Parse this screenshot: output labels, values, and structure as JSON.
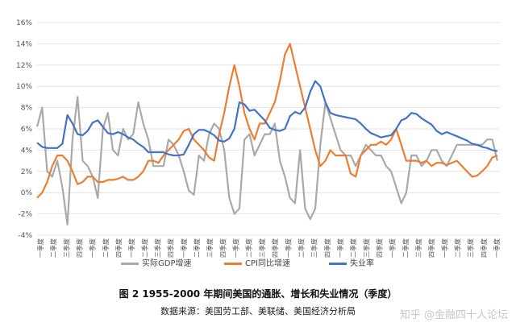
{
  "chart_data": {
    "type": "line",
    "ylim": [
      -4,
      16
    ],
    "ytick_labels": [
      "-4%",
      "-2%",
      "0%",
      "2%",
      "4%",
      "6%",
      "8%",
      "10%",
      "12%",
      "14%",
      "16%"
    ],
    "x_range": [
      1955,
      2000.75
    ],
    "x_tick_labels": [
      "1955一季度",
      "1956二季度",
      "1957三季度",
      "1958四季度",
      "1961一季度",
      "1962二季度",
      "1963四季度",
      "1965一季度",
      "1966二季度",
      "1967三季度",
      "1968四季度",
      "1970一季度",
      "1971二季度",
      "1972三季度",
      "1973四季度",
      "1975一季度",
      "1976二季度",
      "1977三季度",
      "1978四季度",
      "1980一季度",
      "1981二季度",
      "1982三季度",
      "1983四季度",
      "1985一季度",
      "1986二季度",
      "1987三季度",
      "1988四季度",
      "1990一季度",
      "1991二季度",
      "1992三季度",
      "1993四季度",
      "1995一季度",
      "1996二季度",
      "1997三季度",
      "1998四季度",
      "2000一季度"
    ],
    "series": [
      {
        "name": "实际GDP增速",
        "color": "#a9a9a9",
        "x": [
          1955,
          1955.5,
          1956,
          1956.5,
          1957,
          1957.5,
          1958,
          1958.5,
          1959,
          1959.5,
          1960,
          1960.5,
          1961,
          1961.5,
          1962,
          1962.5,
          1963,
          1963.5,
          1964,
          1964.5,
          1965,
          1965.5,
          1966,
          1966.5,
          1967,
          1967.5,
          1968,
          1968.5,
          1969,
          1969.5,
          1970,
          1970.5,
          1971,
          1971.5,
          1972,
          1972.5,
          1973,
          1973.5,
          1974,
          1974.5,
          1975,
          1975.5,
          1976,
          1976.5,
          1977,
          1977.5,
          1978,
          1978.5,
          1979,
          1979.5,
          1980,
          1980.5,
          1981,
          1981.5,
          1982,
          1982.5,
          1983,
          1983.5,
          1984,
          1984.5,
          1985,
          1985.5,
          1986,
          1986.5,
          1987,
          1987.5,
          1988,
          1988.5,
          1989,
          1989.5,
          1990,
          1990.5,
          1991,
          1991.5,
          1992,
          1992.5,
          1993,
          1993.5,
          1994,
          1994.5,
          1995,
          1995.5,
          1996,
          1996.5,
          1997,
          1997.5,
          1998,
          1998.5,
          1999,
          1999.5,
          2000,
          2000.5
        ],
        "values": [
          6.2,
          8.0,
          2.0,
          1.5,
          3.0,
          0.5,
          -3.0,
          5.0,
          9.0,
          3.0,
          2.5,
          1.5,
          -0.5,
          6.0,
          7.5,
          4.0,
          3.5,
          6.0,
          5.0,
          5.5,
          8.5,
          6.5,
          5.0,
          2.5,
          2.5,
          2.5,
          5.0,
          4.5,
          3.5,
          2.0,
          0.2,
          -0.2,
          3.5,
          3.0,
          5.5,
          6.5,
          6.0,
          4.0,
          -0.5,
          -2.0,
          -1.5,
          5.0,
          5.5,
          3.5,
          4.5,
          5.5,
          5.5,
          6.5,
          3.0,
          1.5,
          -0.5,
          -1.0,
          4.0,
          -1.5,
          -2.5,
          -1.5,
          4.5,
          8.5,
          7.0,
          5.5,
          4.0,
          3.5,
          3.5,
          2.5,
          3.5,
          4.5,
          4.0,
          3.5,
          3.5,
          2.5,
          2.0,
          0.5,
          -1.0,
          0.0,
          3.5,
          3.5,
          2.5,
          3.0,
          4.0,
          4.0,
          3.0,
          2.5,
          3.5,
          4.5,
          4.5,
          4.5,
          4.5,
          4.5,
          4.5,
          5.0,
          5.0,
          3.0
        ]
      },
      {
        "name": "CPI同比增速",
        "color": "#ed7d31",
        "x": [
          1955,
          1955.5,
          1956,
          1956.5,
          1957,
          1957.5,
          1958,
          1958.5,
          1959,
          1959.5,
          1960,
          1960.5,
          1961,
          1961.5,
          1962,
          1962.5,
          1963,
          1963.5,
          1964,
          1964.5,
          1965,
          1965.5,
          1966,
          1966.5,
          1967,
          1967.5,
          1968,
          1968.5,
          1969,
          1969.5,
          1970,
          1970.5,
          1971,
          1971.5,
          1972,
          1972.5,
          1973,
          1973.5,
          1974,
          1974.5,
          1975,
          1975.5,
          1976,
          1976.5,
          1977,
          1977.5,
          1978,
          1978.5,
          1979,
          1979.5,
          1980,
          1980.5,
          1981,
          1981.5,
          1982,
          1982.5,
          1983,
          1983.5,
          1984,
          1984.5,
          1985,
          1985.5,
          1986,
          1986.5,
          1987,
          1987.5,
          1988,
          1988.5,
          1989,
          1989.5,
          1990,
          1990.5,
          1991,
          1991.5,
          1992,
          1992.5,
          1993,
          1993.5,
          1994,
          1994.5,
          1995,
          1995.5,
          1996,
          1996.5,
          1997,
          1997.5,
          1998,
          1998.5,
          1999,
          1999.5,
          2000,
          2000.5
        ],
        "values": [
          -0.5,
          0.0,
          1.0,
          2.5,
          3.5,
          3.5,
          3.0,
          2.0,
          0.8,
          1.0,
          1.5,
          1.5,
          1.0,
          1.0,
          1.2,
          1.2,
          1.3,
          1.5,
          1.2,
          1.2,
          1.5,
          2.0,
          3.0,
          3.0,
          2.8,
          3.5,
          4.0,
          4.5,
          5.0,
          5.8,
          6.0,
          5.0,
          4.5,
          4.0,
          3.3,
          3.0,
          5.5,
          7.5,
          10.0,
          12.0,
          10.0,
          7.5,
          6.0,
          5.0,
          6.5,
          6.5,
          7.5,
          8.5,
          10.5,
          13.0,
          14.0,
          12.0,
          10.0,
          8.0,
          6.0,
          4.0,
          2.5,
          3.0,
          4.0,
          3.5,
          3.5,
          3.5,
          1.8,
          1.5,
          3.5,
          4.0,
          4.5,
          4.5,
          4.8,
          4.5,
          5.0,
          6.0,
          4.5,
          3.0,
          3.0,
          3.0,
          2.8,
          3.0,
          2.5,
          2.8,
          2.8,
          2.6,
          2.8,
          3.0,
          2.5,
          2.0,
          1.5,
          1.6,
          2.0,
          2.5,
          3.3,
          3.5
        ]
      },
      {
        "name": "失业率",
        "color": "#4472c4",
        "x": [
          1955,
          1955.5,
          1956,
          1956.5,
          1957,
          1957.5,
          1958,
          1958.5,
          1959,
          1959.5,
          1960,
          1960.5,
          1961,
          1961.5,
          1962,
          1962.5,
          1963,
          1963.5,
          1964,
          1964.5,
          1965,
          1965.5,
          1966,
          1966.5,
          1967,
          1967.5,
          1968,
          1968.5,
          1969,
          1969.5,
          1970,
          1970.5,
          1971,
          1971.5,
          1972,
          1972.5,
          1973,
          1973.5,
          1974,
          1974.5,
          1975,
          1975.5,
          1976,
          1976.5,
          1977,
          1977.5,
          1978,
          1978.5,
          1979,
          1979.5,
          1980,
          1980.5,
          1981,
          1981.5,
          1982,
          1982.5,
          1983,
          1983.5,
          1984,
          1984.5,
          1985,
          1985.5,
          1986,
          1986.5,
          1987,
          1987.5,
          1988,
          1988.5,
          1989,
          1989.5,
          1990,
          1990.5,
          1991,
          1991.5,
          1992,
          1992.5,
          1993,
          1993.5,
          1994,
          1994.5,
          1995,
          1995.5,
          1996,
          1996.5,
          1997,
          1997.5,
          1998,
          1998.5,
          1999,
          1999.5,
          2000,
          2000.5
        ],
        "values": [
          4.7,
          4.3,
          4.2,
          4.2,
          4.2,
          4.6,
          7.3,
          6.5,
          5.5,
          5.4,
          5.8,
          6.6,
          6.8,
          6.2,
          5.6,
          5.5,
          5.7,
          5.5,
          5.2,
          5.0,
          4.6,
          4.3,
          3.8,
          3.8,
          3.8,
          3.8,
          3.6,
          3.5,
          3.5,
          3.6,
          4.5,
          5.5,
          5.9,
          5.9,
          5.7,
          5.4,
          4.9,
          4.8,
          5.1,
          6.0,
          8.5,
          8.3,
          7.7,
          7.8,
          7.3,
          6.8,
          6.1,
          5.9,
          5.8,
          6.0,
          7.2,
          7.6,
          7.4,
          8.0,
          9.5,
          10.5,
          10.0,
          8.5,
          7.5,
          7.3,
          7.2,
          7.1,
          7.0,
          6.9,
          6.5,
          6.0,
          5.6,
          5.4,
          5.2,
          5.3,
          5.4,
          6.0,
          6.8,
          7.0,
          7.5,
          7.4,
          7.0,
          6.7,
          6.4,
          5.8,
          5.5,
          5.7,
          5.5,
          5.3,
          5.1,
          4.9,
          4.6,
          4.5,
          4.3,
          4.2,
          4.0,
          3.9
        ]
      }
    ]
  },
  "legend": [
    {
      "label": "实际GDP增速",
      "color": "#a9a9a9"
    },
    {
      "label": "CPI同比增速",
      "color": "#ed7d31"
    },
    {
      "label": "失业率",
      "color": "#4472c4"
    }
  ],
  "caption": "图 2 1955-2000 年期间美国的通胀、增长和失业情况（季度）",
  "source": "数据来源：美国劳工部、美联储、美国经济分析局",
  "watermark": "知乎 @金融四十人论坛"
}
